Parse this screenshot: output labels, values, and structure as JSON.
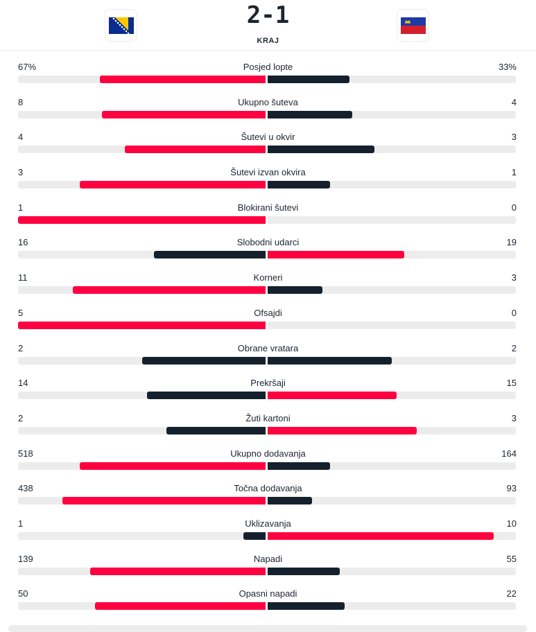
{
  "match": {
    "home_flag": "bosnia-herzegovina-flag",
    "away_flag": "liechtenstein-flag",
    "score": "2-1",
    "status": "KRAJ"
  },
  "colors": {
    "leader": "#ff0040",
    "trailer": "#14212d",
    "track": "#ececec"
  },
  "stats": [
    {
      "name": "Posjed lopte",
      "home": "67%",
      "away": "33%",
      "home_frac": 0.67,
      "away_frac": 0.33,
      "home_lead": true,
      "away_lead": false
    },
    {
      "name": "Ukupno šuteva",
      "home": "8",
      "away": "4",
      "home_frac": 0.66,
      "away_frac": 0.34,
      "home_lead": true,
      "away_lead": false
    },
    {
      "name": "Šutevi u okvir",
      "home": "4",
      "away": "3",
      "home_frac": 0.57,
      "away_frac": 0.43,
      "home_lead": true,
      "away_lead": false
    },
    {
      "name": "Šutevi izvan okvira",
      "home": "3",
      "away": "1",
      "home_frac": 0.75,
      "away_frac": 0.25,
      "home_lead": true,
      "away_lead": false
    },
    {
      "name": "Blokirani šutevi",
      "home": "1",
      "away": "0",
      "home_frac": 1.0,
      "away_frac": 0.0,
      "home_lead": true,
      "away_lead": false
    },
    {
      "name": "Slobodni udarci",
      "home": "16",
      "away": "19",
      "home_frac": 0.45,
      "away_frac": 0.55,
      "home_lead": false,
      "away_lead": true
    },
    {
      "name": "Korneri",
      "home": "11",
      "away": "3",
      "home_frac": 0.78,
      "away_frac": 0.22,
      "home_lead": true,
      "away_lead": false
    },
    {
      "name": "Ofsajdi",
      "home": "5",
      "away": "0",
      "home_frac": 1.0,
      "away_frac": 0.0,
      "home_lead": true,
      "away_lead": false
    },
    {
      "name": "Obrane vratara",
      "home": "2",
      "away": "2",
      "home_frac": 0.5,
      "away_frac": 0.5,
      "home_lead": false,
      "away_lead": false
    },
    {
      "name": "Prekršaji",
      "home": "14",
      "away": "15",
      "home_frac": 0.48,
      "away_frac": 0.52,
      "home_lead": false,
      "away_lead": true
    },
    {
      "name": "Žuti kartoni",
      "home": "2",
      "away": "3",
      "home_frac": 0.4,
      "away_frac": 0.6,
      "home_lead": false,
      "away_lead": true
    },
    {
      "name": "Ukupno dodavanja",
      "home": "518",
      "away": "164",
      "home_frac": 0.75,
      "away_frac": 0.25,
      "home_lead": true,
      "away_lead": false
    },
    {
      "name": "Točna dodavanja",
      "home": "438",
      "away": "93",
      "home_frac": 0.82,
      "away_frac": 0.18,
      "home_lead": true,
      "away_lead": false
    },
    {
      "name": "Uklizavanja",
      "home": "1",
      "away": "10",
      "home_frac": 0.09,
      "away_frac": 0.91,
      "home_lead": false,
      "away_lead": true
    },
    {
      "name": "Napadi",
      "home": "139",
      "away": "55",
      "home_frac": 0.71,
      "away_frac": 0.29,
      "home_lead": true,
      "away_lead": false
    },
    {
      "name": "Opasni napadi",
      "home": "50",
      "away": "22",
      "home_frac": 0.69,
      "away_frac": 0.31,
      "home_lead": true,
      "away_lead": false
    }
  ]
}
